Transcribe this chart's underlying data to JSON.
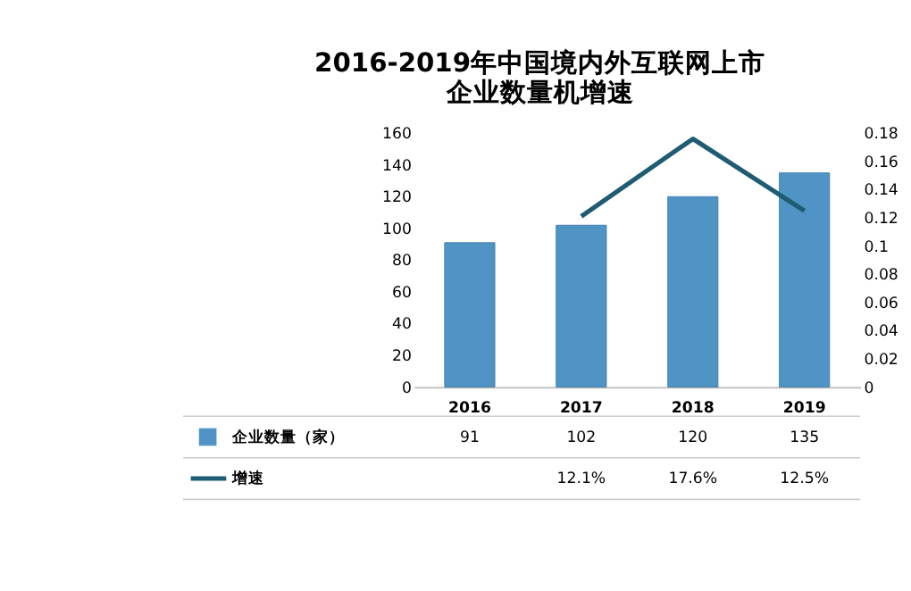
{
  "chart_data": {
    "type": "bar",
    "title": "2016-2019年中国境内外互联网上市企业数量机增速",
    "categories": [
      "2016",
      "2017",
      "2018",
      "2019"
    ],
    "series": [
      {
        "name": "企业数量（家）",
        "color": "#4f94c4",
        "values": [
          91,
          102,
          120,
          135
        ],
        "value_labels": [
          "91",
          "102",
          "120",
          "135"
        ]
      },
      {
        "name": "增速",
        "type": "line",
        "axis": "y2",
        "color": "#1f5c73",
        "values": [
          null,
          0.121,
          0.176,
          0.125
        ],
        "value_labels": [
          null,
          "12.1%",
          "17.6%",
          "12.5%"
        ]
      }
    ],
    "ylim": [
      0,
      160
    ],
    "yticks": [
      0,
      20,
      40,
      60,
      80,
      100,
      120,
      140,
      160
    ],
    "y2lim": [
      0,
      0.18
    ],
    "y2ticks": [
      0,
      0.02,
      0.04,
      0.06,
      0.08,
      0.1,
      0.12,
      0.14,
      0.16,
      0.18
    ],
    "legend": "bottom",
    "grid": false
  }
}
